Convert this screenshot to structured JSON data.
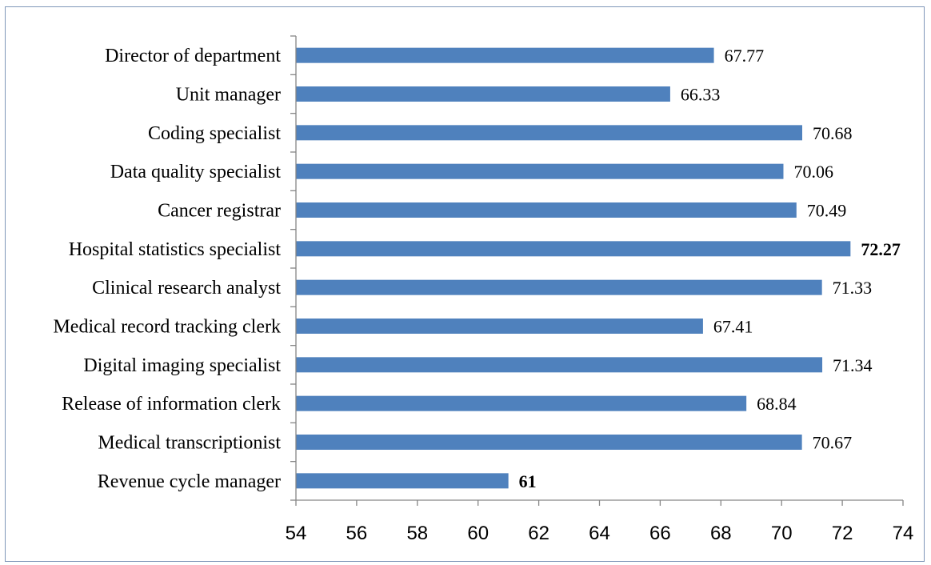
{
  "chart_data": {
    "type": "bar",
    "orientation": "horizontal",
    "title": "",
    "xlabel": "",
    "ylabel": "",
    "categories": [
      "Director of department",
      "Unit manager",
      "Coding specialist",
      "Data quality specialist",
      "Cancer registrar",
      "Hospital statistics specialist",
      "Clinical research analyst",
      "Medical record tracking clerk",
      "Digital imaging specialist",
      "Release of information clerk",
      "Medical transcriptionist",
      "Revenue cycle manager"
    ],
    "values": [
      67.77,
      66.33,
      70.68,
      70.06,
      70.49,
      72.27,
      71.33,
      67.41,
      71.34,
      68.84,
      70.67,
      61
    ],
    "value_labels": [
      "67.77",
      "66.33",
      "70.68",
      "70.06",
      "70.49",
      "72.27",
      "71.33",
      "67.41",
      "71.34",
      "68.84",
      "70.67",
      "61"
    ],
    "bold_value_labels": [
      "72.27",
      "61"
    ],
    "xlim": [
      54,
      74
    ],
    "xticks": [
      "54",
      "56",
      "58",
      "60",
      "62",
      "64",
      "66",
      "68",
      "70",
      "72",
      "74"
    ],
    "grid": false,
    "legend": "none",
    "bar_color": "#4f81bd",
    "axis_color": "#868686"
  }
}
